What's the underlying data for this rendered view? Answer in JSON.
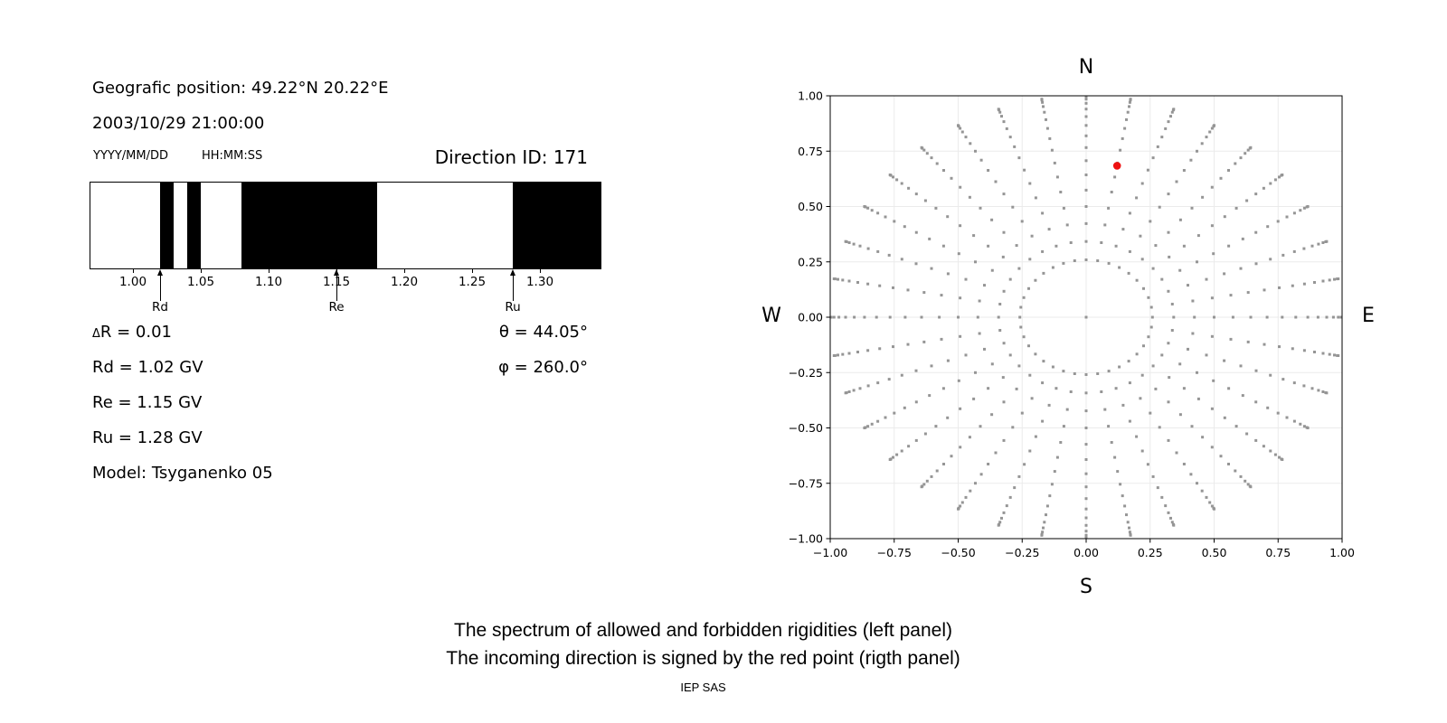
{
  "header": {
    "geo_position": "Geografic position: 49.22°N 20.22°E",
    "datetime": "2003/10/29 21:00:00",
    "date_format_label": "YYYY/MM/DD",
    "time_format_label": "HH:MM:SS",
    "direction_id": "Direction ID: 171"
  },
  "parameters": {
    "delta_symbol": "Δ",
    "delta_rest": "R = 0.01",
    "rd": "Rd = 1.02 GV",
    "re": "Re = 1.15 GV",
    "ru": "Ru = 1.28 GV",
    "model": "Model: Tsyganenko 05",
    "theta": "θ = 44.05°",
    "phi": "φ = 260.0°"
  },
  "caption": {
    "line1": "The spectrum of allowed and forbidden rigidities (left panel)",
    "line2": "The incoming direction is signed by the red point (rigth panel)",
    "credit": "IEP SAS"
  },
  "chart_data": [
    {
      "type": "bar",
      "title": "Spectrum of allowed (white) and forbidden (black) rigidities",
      "xlim": [
        0.968,
        1.3453
      ],
      "xtick_labels": [
        "1.00",
        "1.05",
        "1.10",
        "1.15",
        "1.20",
        "1.25",
        "1.30"
      ],
      "xtick_values": [
        1.0,
        1.05,
        1.1,
        1.15,
        1.2,
        1.25,
        1.3
      ],
      "forbidden_bands": [
        [
          1.02,
          1.03
        ],
        [
          1.04,
          1.05
        ],
        [
          1.08,
          1.18
        ],
        [
          1.28,
          1.3453
        ]
      ],
      "markers": [
        {
          "label": "Rd",
          "value": 1.02
        },
        {
          "label": "Re",
          "value": 1.15
        },
        {
          "label": "Ru",
          "value": 1.28
        }
      ],
      "forbidden_color": "#000000",
      "allowed_color": "#ffffff"
    },
    {
      "type": "scatter",
      "compass": {
        "top": "N",
        "bottom": "S",
        "left": "W",
        "right": "E"
      },
      "xlim": [
        -1,
        1
      ],
      "ylim": [
        -1,
        1
      ],
      "xtick_labels": [
        "−1.00",
        "−0.75",
        "−0.50",
        "−0.25",
        "0.00",
        "0.25",
        "0.50",
        "0.75",
        "1.00"
      ],
      "xtick_values": [
        -1,
        -0.75,
        -0.5,
        -0.25,
        0,
        0.25,
        0.5,
        0.75,
        1
      ],
      "ytick_labels": [
        "−1.00",
        "−0.75",
        "−0.50",
        "−0.25",
        "0.00",
        "0.25",
        "0.50",
        "0.75",
        "1.00"
      ],
      "ytick_values": [
        -1,
        -0.75,
        -0.5,
        -0.25,
        0,
        0.25,
        0.5,
        0.75,
        1
      ],
      "grid": true,
      "grid_color": "#ebebeb",
      "dot_color": "#959595",
      "spokes": {
        "azimuth_start_deg": 0,
        "azimuth_step_deg": 10,
        "azimuth_count": 36,
        "radii": [
          0.259,
          0.342,
          0.423,
          0.5,
          0.574,
          0.643,
          0.707,
          0.766,
          0.819,
          0.866,
          0.906,
          0.94,
          0.966,
          0.985,
          0.996,
          1.0
        ],
        "center_point": true
      },
      "red_point": {
        "x": 0.121,
        "y": 0.684,
        "color": "#ee1111"
      }
    }
  ]
}
